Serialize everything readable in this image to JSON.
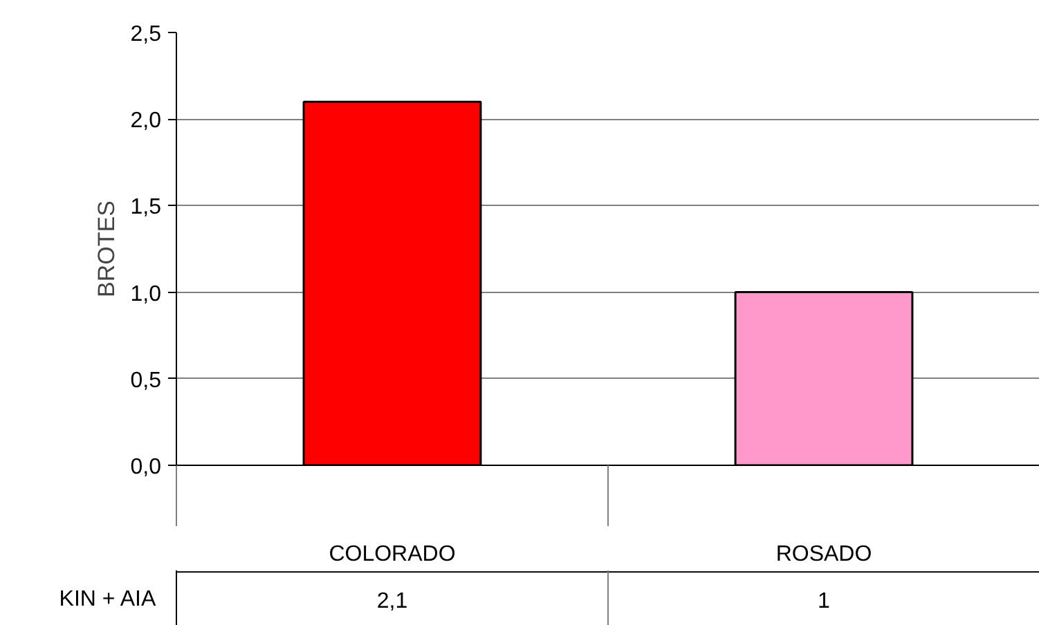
{
  "chart_data": {
    "type": "bar",
    "ylabel": "BROTES",
    "categories": [
      "COLORADO",
      "ROSADO"
    ],
    "series": [
      {
        "name": "KIN + AIA",
        "colors": [
          "#ff0000",
          "#ff99cc"
        ],
        "values": [
          2.1,
          1
        ],
        "value_labels": [
          "2,1",
          "1"
        ]
      }
    ],
    "ylim": [
      0,
      2.5
    ],
    "yticks": [
      {
        "value": 0,
        "label": "0,0"
      },
      {
        "value": 0.5,
        "label": "0,5"
      },
      {
        "value": 1,
        "label": "1,0"
      },
      {
        "value": 1.5,
        "label": "1,5"
      },
      {
        "value": 2,
        "label": "2,0"
      },
      {
        "value": 2.5,
        "label": "2,5"
      }
    ],
    "grid": "y"
  }
}
